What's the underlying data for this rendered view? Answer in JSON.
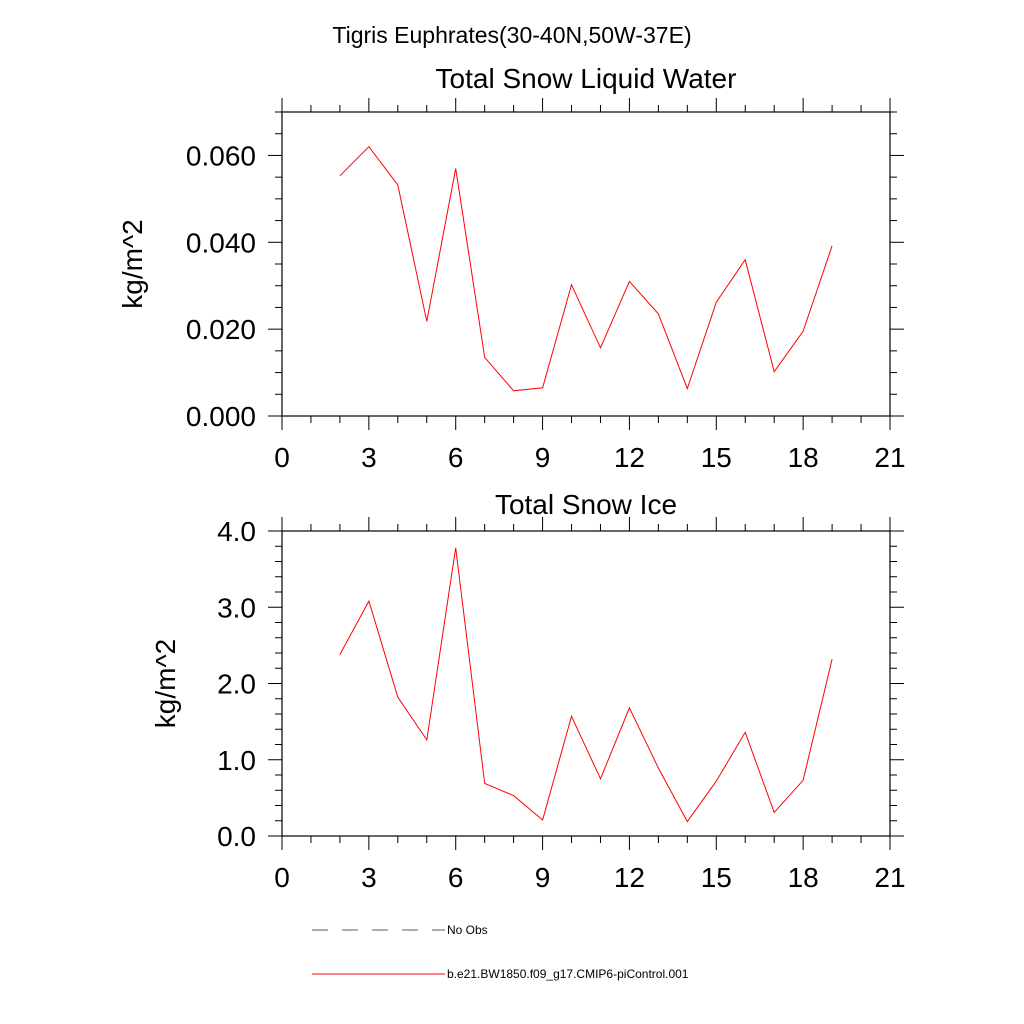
{
  "figure": {
    "title": "Tigris Euphrates(30-40N,50W-37E)"
  },
  "colors": {
    "series": "#ff0000",
    "no_obs": "#555577",
    "axis": "#000000"
  },
  "legend": {
    "no_obs_label": "No Obs",
    "series_label": "b.e21.BW1850.f09_g17.CMIP6-piControl.001"
  },
  "chart_data": [
    {
      "type": "line",
      "title": "Total Snow Liquid Water",
      "xlabel": "",
      "ylabel": "kg/m^2",
      "xlim": [
        0,
        21
      ],
      "ylim": [
        0,
        0.07
      ],
      "xticks": [
        0,
        3,
        6,
        9,
        12,
        15,
        18,
        21
      ],
      "xtick_labels": [
        "0",
        "3",
        "6",
        "9",
        "12",
        "15",
        "18",
        "21"
      ],
      "yticks": [
        0,
        0.02,
        0.04,
        0.06
      ],
      "ytick_labels": [
        "0.000",
        "0.020",
        "0.040",
        "0.060"
      ],
      "x_minor_step": 1,
      "y_minor_step": 0.005,
      "grid": false,
      "series": [
        {
          "name": "b.e21.BW1850.f09_g17.CMIP6-piControl.001",
          "x": [
            2,
            3,
            4,
            5,
            6,
            7,
            8,
            9,
            10,
            11,
            12,
            13,
            14,
            15,
            16,
            17,
            18,
            19
          ],
          "values": [
            0.0553,
            0.062,
            0.0532,
            0.0218,
            0.057,
            0.0135,
            0.0058,
            0.0065,
            0.0302,
            0.0157,
            0.031,
            0.0235,
            0.0063,
            0.0262,
            0.036,
            0.0102,
            0.0195,
            0.0392
          ]
        }
      ]
    },
    {
      "type": "line",
      "title": "Total Snow Ice",
      "xlabel": "",
      "ylabel": "kg/m^2",
      "xlim": [
        0,
        21
      ],
      "ylim": [
        0,
        4.0
      ],
      "xticks": [
        0,
        3,
        6,
        9,
        12,
        15,
        18,
        21
      ],
      "xtick_labels": [
        "0",
        "3",
        "6",
        "9",
        "12",
        "15",
        "18",
        "21"
      ],
      "yticks": [
        0,
        1.0,
        2.0,
        3.0,
        4.0
      ],
      "ytick_labels": [
        "0.0",
        "1.0",
        "2.0",
        "3.0",
        "4.0"
      ],
      "x_minor_step": 1,
      "y_minor_step": 0.2,
      "grid": false,
      "series": [
        {
          "name": "b.e21.BW1850.f09_g17.CMIP6-piControl.001",
          "x": [
            2,
            3,
            4,
            5,
            6,
            7,
            8,
            9,
            10,
            11,
            12,
            13,
            14,
            15,
            16,
            17,
            18,
            19
          ],
          "values": [
            2.38,
            3.08,
            1.82,
            1.26,
            3.78,
            0.69,
            0.53,
            0.21,
            1.57,
            0.75,
            1.68,
            0.89,
            0.19,
            0.72,
            1.36,
            0.31,
            0.73,
            2.32
          ]
        }
      ]
    }
  ]
}
